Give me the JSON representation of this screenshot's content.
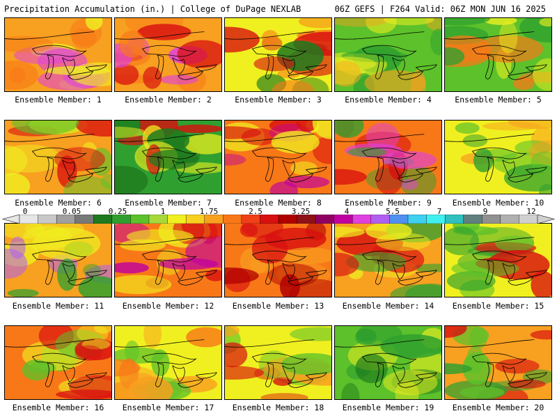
{
  "header": {
    "left": "Precipitation Accumulation (in.) | College of DuPage NEXLAB",
    "right": "06Z GEFS | F264 Valid: 06Z MON JUN 16 2025"
  },
  "legend": {
    "ticks": [
      "0",
      "0.05",
      "0.25",
      "1",
      "1.75",
      "2.5",
      "3.25",
      "4",
      "5.5",
      "7",
      "9",
      "12"
    ],
    "colors": [
      "#e6e6e6",
      "#c8c8c8",
      "#a0a0a0",
      "#787878",
      "#1e7a1e",
      "#2fa02f",
      "#5cc12a",
      "#a8d83a",
      "#f0f020",
      "#f8d020",
      "#f8a020",
      "#f87818",
      "#f04018",
      "#d81010",
      "#b00000",
      "#901018",
      "#900060",
      "#c000a0",
      "#e040e0",
      "#b060f0",
      "#5090f0",
      "#40d0f0",
      "#40f0f0",
      "#30c0c0",
      "#608080",
      "#909090",
      "#b0b0b0",
      "#d0d0d0"
    ]
  },
  "panels": [
    {
      "label": "Ensemble Member: 1",
      "palette": [
        "#f8a020",
        "#f0f020",
        "#f87818",
        "#e040e0"
      ]
    },
    {
      "label": "Ensemble Member: 2",
      "palette": [
        "#f8a020",
        "#f87818",
        "#d81010",
        "#e040e0"
      ]
    },
    {
      "label": "Ensemble Member: 3",
      "palette": [
        "#f0f020",
        "#f87818",
        "#d81010",
        "#1e7a1e"
      ]
    },
    {
      "label": "Ensemble Member: 4",
      "palette": [
        "#5cc12a",
        "#f0f020",
        "#f8a020",
        "#2fa02f"
      ]
    },
    {
      "label": "Ensemble Member: 5",
      "palette": [
        "#5cc12a",
        "#f0f020",
        "#f87818",
        "#2fa02f"
      ]
    },
    {
      "label": "Ensemble Member: 6",
      "palette": [
        "#f8a020",
        "#f0f020",
        "#5cc12a",
        "#d81010"
      ]
    },
    {
      "label": "Ensemble Member: 7",
      "palette": [
        "#2fa02f",
        "#1e7a1e",
        "#f0f020",
        "#d81010"
      ]
    },
    {
      "label": "Ensemble Member: 8",
      "palette": [
        "#f87818",
        "#d81010",
        "#f0f020",
        "#c000a0"
      ]
    },
    {
      "label": "Ensemble Member: 9",
      "palette": [
        "#f87818",
        "#d81010",
        "#2fa02f",
        "#e040e0"
      ]
    },
    {
      "label": "Ensemble Member: 10",
      "palette": [
        "#f0f020",
        "#f8a020",
        "#5cc12a",
        "#2fa02f"
      ]
    },
    {
      "label": "Ensemble Member: 11",
      "palette": [
        "#f8a020",
        "#f0f020",
        "#2fa02f",
        "#b060f0"
      ]
    },
    {
      "label": "Ensemble Member: 12",
      "palette": [
        "#f87818",
        "#d81010",
        "#f0f020",
        "#c000a0"
      ]
    },
    {
      "label": "Ensemble Member: 13",
      "palette": [
        "#f87818",
        "#d81010",
        "#b00000",
        "#f8a020"
      ]
    },
    {
      "label": "Ensemble Member: 14",
      "palette": [
        "#f8a020",
        "#2fa02f",
        "#f0f020",
        "#d81010"
      ]
    },
    {
      "label": "Ensemble Member: 15",
      "palette": [
        "#f0f020",
        "#5cc12a",
        "#2fa02f",
        "#d81010"
      ]
    },
    {
      "label": "Ensemble Member: 16",
      "palette": [
        "#f87818",
        "#f0f020",
        "#d81010",
        "#5cc12a"
      ]
    },
    {
      "label": "Ensemble Member: 17",
      "palette": [
        "#f0f020",
        "#f8a020",
        "#5cc12a",
        "#f87818"
      ]
    },
    {
      "label": "Ensemble Member: 18",
      "palette": [
        "#f0f020",
        "#5cc12a",
        "#d81010",
        "#f8a020"
      ]
    },
    {
      "label": "Ensemble Member: 19",
      "palette": [
        "#5cc12a",
        "#2fa02f",
        "#f0f020",
        "#1e7a1e"
      ]
    },
    {
      "label": "Ensemble Member: 20",
      "palette": [
        "#f8a020",
        "#d81010",
        "#5cc12a",
        "#2fa02f"
      ]
    }
  ]
}
